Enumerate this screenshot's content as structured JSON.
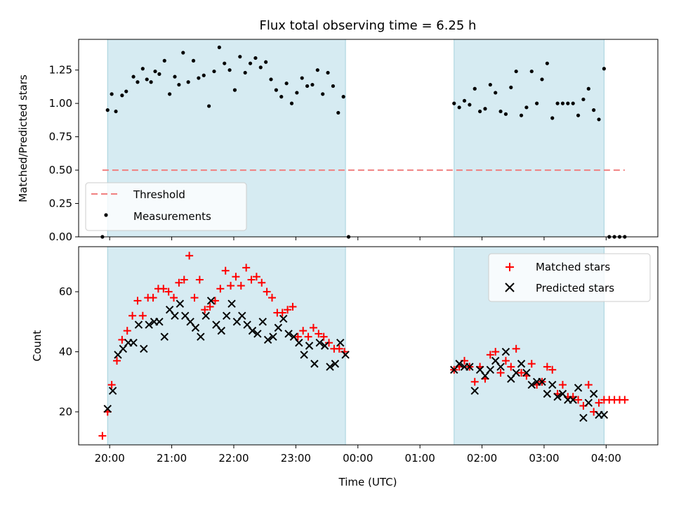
{
  "chart_data": [
    {
      "type": "scatter",
      "title": "Flux total observing time = 6.25 h",
      "xlabel": "",
      "ylabel": "Matched/Predicted stars",
      "ylim": [
        0,
        1.48
      ],
      "yticks": [
        0.0,
        0.25,
        0.5,
        0.75,
        1.0,
        1.25
      ],
      "ytick_labels": [
        "0.00",
        "0.25",
        "0.50",
        "0.75",
        "1.00",
        "1.25"
      ],
      "legend": {
        "placement": "lower-left",
        "entries": [
          "Threshold",
          "Measurements"
        ]
      },
      "threshold": {
        "name": "Threshold",
        "value": 0.5,
        "x_start": "19:53",
        "x_end": "04:18",
        "color": "#f08080"
      },
      "shaded_intervals": [
        {
          "start": "19:58",
          "end": "23:48"
        },
        {
          "start": "01:33",
          "end": "03:58"
        }
      ],
      "series": [
        {
          "name": "Measurements",
          "color": "#000000",
          "x": [
            "19:53",
            "19:58",
            "20:02",
            "20:06",
            "20:12",
            "20:16",
            "20:23",
            "20:27",
            "20:32",
            "20:36",
            "20:40",
            "20:44",
            "20:48",
            "20:53",
            "20:58",
            "21:03",
            "21:07",
            "21:11",
            "21:16",
            "21:21",
            "21:26",
            "21:31",
            "21:36",
            "21:41",
            "21:46",
            "21:51",
            "21:56",
            "22:01",
            "22:06",
            "22:11",
            "22:16",
            "22:21",
            "22:26",
            "22:31",
            "22:36",
            "22:41",
            "22:46",
            "22:51",
            "22:56",
            "23:01",
            "23:06",
            "23:11",
            "23:16",
            "23:21",
            "23:26",
            "23:31",
            "23:36",
            "23:41",
            "23:46",
            "23:51",
            "01:33",
            "01:38",
            "01:43",
            "01:48",
            "01:53",
            "01:58",
            "02:03",
            "02:08",
            "02:13",
            "02:18",
            "02:23",
            "02:28",
            "02:33",
            "02:38",
            "02:43",
            "02:48",
            "02:53",
            "02:58",
            "03:03",
            "03:08",
            "03:13",
            "03:18",
            "03:23",
            "03:28",
            "03:33",
            "03:38",
            "03:43",
            "03:48",
            "03:53",
            "03:58",
            "04:03",
            "04:08",
            "04:13",
            "04:18"
          ],
          "y": [
            0.0,
            0.95,
            1.07,
            0.94,
            1.06,
            1.09,
            1.2,
            1.16,
            1.26,
            1.18,
            1.16,
            1.24,
            1.22,
            1.32,
            1.07,
            1.2,
            1.14,
            1.38,
            1.16,
            1.32,
            1.19,
            1.21,
            0.98,
            1.24,
            1.42,
            1.3,
            1.25,
            1.1,
            1.35,
            1.23,
            1.3,
            1.34,
            1.27,
            1.31,
            1.18,
            1.1,
            1.05,
            1.15,
            1.0,
            1.08,
            1.19,
            1.13,
            1.14,
            1.25,
            1.07,
            1.23,
            1.13,
            0.93,
            1.05,
            0.0,
            1.0,
            0.97,
            1.02,
            0.99,
            1.11,
            0.94,
            0.96,
            1.14,
            1.08,
            0.94,
            0.92,
            1.12,
            1.24,
            0.91,
            0.97,
            1.24,
            1.0,
            1.18,
            1.3,
            0.89,
            1.0,
            1.0,
            1.0,
            1.0,
            0.91,
            1.03,
            1.11,
            0.95,
            0.88,
            1.26,
            0.0,
            0.0,
            0.0,
            0.0
          ]
        }
      ]
    },
    {
      "type": "scatter",
      "title": "",
      "xlabel": "Time (UTC)",
      "ylabel": "Count",
      "ylim": [
        9,
        75
      ],
      "yticks": [
        20,
        40,
        60
      ],
      "ytick_labels": [
        "20",
        "40",
        "60"
      ],
      "xlim": [
        "19:30",
        "04:50"
      ],
      "xticks": [
        "20:00",
        "21:00",
        "22:00",
        "23:00",
        "00:00",
        "01:00",
        "02:00",
        "03:00",
        "04:00"
      ],
      "legend": {
        "placement": "top-right",
        "entries": [
          "Matched stars",
          "Predicted stars"
        ]
      },
      "shaded_intervals": [
        {
          "start": "19:58",
          "end": "23:48"
        },
        {
          "start": "01:33",
          "end": "03:58"
        }
      ],
      "series": [
        {
          "name": "Matched stars",
          "marker": "plus",
          "color": "#ff0000",
          "x": [
            "19:53",
            "19:58",
            "20:02",
            "20:07",
            "20:12",
            "20:17",
            "20:22",
            "20:27",
            "20:32",
            "20:37",
            "20:42",
            "20:47",
            "20:52",
            "20:57",
            "21:02",
            "21:07",
            "21:12",
            "21:17",
            "21:22",
            "21:27",
            "21:32",
            "21:37",
            "21:42",
            "21:47",
            "21:52",
            "21:57",
            "22:02",
            "22:07",
            "22:12",
            "22:17",
            "22:22",
            "22:27",
            "22:32",
            "22:37",
            "22:42",
            "22:47",
            "22:52",
            "22:57",
            "23:02",
            "23:07",
            "23:12",
            "23:17",
            "23:22",
            "23:27",
            "23:32",
            "23:37",
            "23:42",
            "23:47",
            "01:33",
            "01:38",
            "01:43",
            "01:48",
            "01:53",
            "01:58",
            "02:03",
            "02:08",
            "02:13",
            "02:18",
            "02:23",
            "02:28",
            "02:33",
            "02:38",
            "02:43",
            "02:48",
            "02:53",
            "02:58",
            "03:03",
            "03:08",
            "03:13",
            "03:18",
            "03:23",
            "03:28",
            "03:33",
            "03:38",
            "03:43",
            "03:48",
            "03:53",
            "03:58",
            "04:03",
            "04:08",
            "04:13",
            "04:18"
          ],
          "y": [
            12,
            20,
            29,
            37,
            44,
            47,
            52,
            57,
            52,
            58,
            58,
            61,
            61,
            60,
            58,
            63,
            64,
            72,
            58,
            64,
            54,
            55,
            57,
            61,
            67,
            62,
            65,
            62,
            68,
            64,
            65,
            63,
            60,
            58,
            53,
            53,
            54,
            55,
            45,
            47,
            45,
            48,
            46,
            45,
            43,
            41,
            41,
            40,
            34,
            35,
            37,
            35,
            30,
            35,
            31,
            39,
            40,
            33,
            37,
            35,
            41,
            33,
            32,
            36,
            29,
            30,
            35,
            34,
            26,
            29,
            25,
            25,
            24,
            22,
            29,
            20,
            23,
            24,
            24,
            24,
            24,
            24
          ]
        },
        {
          "name": "Predicted stars",
          "marker": "x",
          "color": "#000000",
          "x": [
            "19:58",
            "20:03",
            "20:08",
            "20:13",
            "20:18",
            "20:23",
            "20:28",
            "20:33",
            "20:38",
            "20:43",
            "20:48",
            "20:53",
            "20:58",
            "21:03",
            "21:08",
            "21:13",
            "21:18",
            "21:23",
            "21:28",
            "21:33",
            "21:38",
            "21:43",
            "21:48",
            "21:53",
            "21:58",
            "22:03",
            "22:08",
            "22:13",
            "22:18",
            "22:23",
            "22:28",
            "22:33",
            "22:38",
            "22:43",
            "22:48",
            "22:53",
            "22:58",
            "23:03",
            "23:08",
            "23:13",
            "23:18",
            "23:23",
            "23:28",
            "23:33",
            "23:38",
            "23:43",
            "23:48",
            "01:33",
            "01:38",
            "01:43",
            "01:48",
            "01:53",
            "01:58",
            "02:03",
            "02:08",
            "02:13",
            "02:18",
            "02:23",
            "02:28",
            "02:33",
            "02:38",
            "02:43",
            "02:48",
            "02:53",
            "02:58",
            "03:03",
            "03:08",
            "03:13",
            "03:18",
            "03:23",
            "03:28",
            "03:33",
            "03:38",
            "03:43",
            "03:48",
            "03:53",
            "03:58"
          ],
          "y": [
            21,
            27,
            39,
            41,
            43,
            43,
            49,
            41,
            49,
            50,
            50,
            45,
            54,
            52,
            56,
            52,
            50,
            48,
            45,
            52,
            57,
            49,
            47,
            52,
            56,
            50,
            52,
            49,
            47,
            46,
            50,
            44,
            45,
            48,
            51,
            46,
            45,
            43,
            39,
            42,
            36,
            43,
            42,
            35,
            36,
            43,
            39,
            34,
            36,
            35,
            35,
            27,
            34,
            32,
            34,
            37,
            35,
            40,
            31,
            33,
            36,
            33,
            29,
            30,
            30,
            26,
            29,
            25,
            26,
            24,
            24,
            28,
            18,
            23,
            26,
            19,
            19
          ]
        }
      ]
    }
  ]
}
